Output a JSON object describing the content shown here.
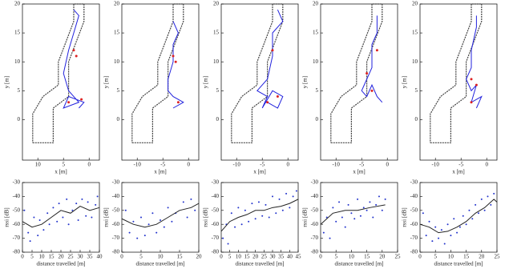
{
  "chart_data": [
    {
      "type": "line",
      "x_label": "x [m]",
      "y_label": "y [m]",
      "xlim": [
        13,
        -2
      ],
      "ylim": [
        -7,
        20
      ],
      "xticks": [
        10,
        5,
        0
      ],
      "yticks": [
        0,
        5,
        10,
        15,
        20
      ],
      "series": [
        {
          "color": "#444444",
          "mode": "line",
          "x": [
            11,
            7,
            7,
            4,
            4,
            1,
            1,
            3,
            3,
            6,
            6,
            9,
            11,
            11
          ],
          "values": [
            -4,
            -4,
            2,
            4,
            10,
            17,
            20,
            20,
            17,
            10,
            6,
            4,
            1,
            -4
          ]
        },
        {
          "color": "#2222dd",
          "mode": "line",
          "x": [
            3,
            2,
            3,
            4,
            5,
            4,
            3,
            2,
            5,
            4,
            1,
            2
          ],
          "values": [
            19,
            18,
            15,
            12,
            8,
            5,
            4,
            3,
            2,
            4,
            3,
            2
          ]
        },
        {
          "color": "#dd2222",
          "mode": "markers",
          "x": [
            2.5,
            3,
            1.5,
            4
          ],
          "values": [
            11,
            12,
            3.5,
            3
          ]
        }
      ]
    },
    {
      "type": "line",
      "x_label": "x [m]",
      "y_label": "y [m]",
      "xlim": [
        -13,
        2
      ],
      "ylim": [
        -7,
        20
      ],
      "xticks": [
        -10,
        -5,
        0
      ],
      "yticks": [
        0,
        5,
        10,
        15,
        20
      ],
      "series": [
        {
          "color": "#444444",
          "mode": "line",
          "x": [
            -11,
            -7,
            -7,
            -4,
            -4,
            -1,
            -1,
            -3,
            -3,
            -6,
            -6,
            -9,
            -11,
            -11
          ],
          "values": [
            -4,
            -4,
            2,
            4,
            10,
            17,
            20,
            20,
            17,
            10,
            6,
            4,
            1,
            -4
          ]
        },
        {
          "color": "#2222dd",
          "mode": "line",
          "x": [
            -3,
            -2,
            -3,
            -3,
            -4,
            -4,
            -3,
            -1,
            -3,
            -1
          ],
          "values": [
            17,
            15,
            13,
            10,
            7,
            5,
            4,
            3,
            2,
            3
          ]
        },
        {
          "color": "#dd2222",
          "mode": "markers",
          "x": [
            -3,
            -2.5,
            -2
          ],
          "values": [
            11,
            10,
            3
          ]
        }
      ]
    },
    {
      "type": "line",
      "x_label": "x [m]",
      "y_label": "y [m]",
      "xlim": [
        -13,
        2
      ],
      "ylim": [
        -7,
        20
      ],
      "xticks": [
        -10,
        -5,
        0
      ],
      "yticks": [
        0,
        5,
        10,
        15,
        20
      ],
      "series": [
        {
          "color": "#444444",
          "mode": "line",
          "x": [
            -11,
            -7,
            -7,
            -4,
            -4,
            -1,
            -1,
            -3,
            -3,
            -6,
            -6,
            -9,
            -11,
            -11
          ],
          "values": [
            -4,
            -4,
            2,
            4,
            10,
            17,
            20,
            20,
            17,
            10,
            6,
            4,
            1,
            -4
          ]
        },
        {
          "color": "#2222dd",
          "mode": "line",
          "x": [
            -2,
            -1,
            -3,
            -3,
            -4,
            -6,
            -4,
            -5,
            -3,
            -1,
            -2,
            -4
          ],
          "values": [
            19,
            17,
            15,
            11,
            7,
            5,
            4,
            2,
            5,
            4,
            2,
            3
          ]
        },
        {
          "color": "#dd2222",
          "mode": "markers",
          "x": [
            -3,
            -2,
            -4
          ],
          "values": [
            12,
            4,
            3
          ]
        }
      ]
    },
    {
      "type": "line",
      "x_label": "x [m]",
      "y_label": "y [m]",
      "xlim": [
        -13,
        2
      ],
      "ylim": [
        -7,
        20
      ],
      "xticks": [
        -10,
        -5,
        0
      ],
      "yticks": [
        0,
        5,
        10,
        15,
        20
      ],
      "series": [
        {
          "color": "#444444",
          "mode": "line",
          "x": [
            -11,
            -7,
            -7,
            -4,
            -4,
            -1,
            -1,
            -3,
            -3,
            -6,
            -6,
            -9,
            -11,
            -11
          ],
          "values": [
            -4,
            -4,
            2,
            4,
            10,
            17,
            20,
            20,
            17,
            10,
            6,
            4,
            1,
            -4
          ]
        },
        {
          "color": "#2222dd",
          "mode": "line",
          "x": [
            -2,
            -2,
            -3,
            -3,
            -4,
            -5,
            -4,
            -3,
            -2,
            -1
          ],
          "values": [
            18,
            15,
            13,
            9,
            7,
            5,
            4,
            6,
            4,
            3
          ]
        },
        {
          "color": "#dd2222",
          "mode": "markers",
          "x": [
            -2,
            -4,
            -3
          ],
          "values": [
            12,
            8,
            5
          ]
        }
      ]
    },
    {
      "type": "line",
      "x_label": "x [m]",
      "y_label": "y [m]",
      "xlim": [
        -13,
        2
      ],
      "ylim": [
        -7,
        20
      ],
      "xticks": [
        -10,
        -5,
        0
      ],
      "yticks": [
        0,
        5,
        10,
        15,
        20
      ],
      "series": [
        {
          "color": "#444444",
          "mode": "line",
          "x": [
            -11,
            -7,
            -7,
            -4,
            -4,
            -1,
            -1,
            -3,
            -3,
            -6,
            -6,
            -9,
            -11,
            -11
          ],
          "values": [
            -4,
            -4,
            2,
            4,
            10,
            17,
            20,
            20,
            17,
            10,
            6,
            4,
            1,
            -4
          ]
        },
        {
          "color": "#2222dd",
          "mode": "line",
          "x": [
            -2,
            -2,
            -3,
            -3,
            -4,
            -3,
            -2,
            -3,
            -1,
            -2
          ],
          "values": [
            18,
            16,
            12,
            9,
            7,
            5,
            6,
            3,
            4,
            2
          ]
        },
        {
          "color": "#dd2222",
          "mode": "markers",
          "x": [
            -3,
            -2,
            -3
          ],
          "values": [
            7,
            6,
            3
          ]
        }
      ]
    },
    {
      "type": "scatter",
      "x_label": "distance travelled [m]",
      "y_label": "rssi [dB]",
      "xlim": [
        0,
        40
      ],
      "ylim": [
        -80,
        -30
      ],
      "xticks": [
        0,
        5,
        10,
        15,
        20,
        25,
        30,
        35,
        40
      ],
      "yticks": [
        -30,
        -40,
        -50,
        -60,
        -70,
        -80
      ],
      "series": [
        {
          "color": "#2233cc",
          "mode": "markers",
          "x": [
            1,
            3,
            4,
            6,
            8,
            9,
            11,
            13,
            14,
            16,
            18,
            19,
            21,
            23,
            24,
            26,
            28,
            29,
            31,
            33,
            34,
            36,
            38,
            39
          ],
          "values": [
            -50,
            -66,
            -72,
            -55,
            -68,
            -57,
            -64,
            -52,
            -60,
            -48,
            -58,
            -45,
            -55,
            -42,
            -60,
            -50,
            -45,
            -57,
            -42,
            -54,
            -44,
            -55,
            -46,
            -40
          ]
        },
        {
          "color": "#222222",
          "mode": "line",
          "x": [
            0,
            5,
            10,
            15,
            20,
            25,
            30,
            35,
            40
          ],
          "values": [
            -58,
            -62,
            -60,
            -55,
            -50,
            -52,
            -47,
            -50,
            -48
          ]
        }
      ]
    },
    {
      "type": "scatter",
      "x_label": "distance travelled [m]",
      "y_label": "rssi [dB]",
      "xlim": [
        0,
        20
      ],
      "ylim": [
        -80,
        -30
      ],
      "xticks": [
        0,
        5,
        10,
        15,
        20
      ],
      "yticks": [
        -30,
        -40,
        -50,
        -60,
        -70,
        -80
      ],
      "series": [
        {
          "color": "#2233cc",
          "mode": "markers",
          "x": [
            1,
            2,
            3,
            4,
            5,
            6,
            7,
            8,
            9,
            10,
            11,
            12,
            13,
            14,
            16,
            17,
            18,
            19
          ],
          "values": [
            -50,
            -66,
            -58,
            -70,
            -55,
            -68,
            -60,
            -52,
            -66,
            -57,
            -62,
            -48,
            -58,
            -52,
            -44,
            -55,
            -42,
            -50
          ]
        },
        {
          "color": "#222222",
          "mode": "line",
          "x": [
            0,
            3,
            6,
            9,
            12,
            15,
            18,
            20
          ],
          "values": [
            -56,
            -60,
            -62,
            -60,
            -55,
            -50,
            -48,
            -45
          ]
        }
      ]
    },
    {
      "type": "scatter",
      "x_label": "distance travelled [m]",
      "y_label": "rssi [dB]",
      "xlim": [
        0,
        45
      ],
      "ylim": [
        -80,
        -30
      ],
      "xticks": [
        0,
        5,
        10,
        15,
        20,
        25,
        30,
        35,
        40,
        45
      ],
      "yticks": [
        -30,
        -40,
        -50,
        -60,
        -70,
        -80
      ],
      "series": [
        {
          "color": "#2233cc",
          "mode": "markers",
          "x": [
            1,
            3,
            4,
            6,
            8,
            10,
            12,
            14,
            16,
            18,
            20,
            22,
            24,
            26,
            28,
            30,
            32,
            34,
            36,
            38,
            40,
            42,
            44
          ],
          "values": [
            -70,
            -60,
            -74,
            -52,
            -62,
            -48,
            -60,
            -50,
            -58,
            -45,
            -56,
            -44,
            -54,
            -46,
            -55,
            -40,
            -52,
            -42,
            -50,
            -38,
            -48,
            -40,
            -36
          ]
        },
        {
          "color": "#222222",
          "mode": "line",
          "x": [
            0,
            5,
            10,
            15,
            20,
            25,
            30,
            35,
            40,
            45
          ],
          "values": [
            -65,
            -58,
            -55,
            -53,
            -50,
            -50,
            -48,
            -47,
            -45,
            -42
          ]
        }
      ]
    },
    {
      "type": "scatter",
      "x_label": "distance travelled [m]",
      "y_label": "rssi [dB]",
      "xlim": [
        0,
        25
      ],
      "ylim": [
        -80,
        -30
      ],
      "xticks": [
        0,
        5,
        10,
        15,
        20,
        25
      ],
      "yticks": [
        -30,
        -40,
        -50,
        -60,
        -70,
        -80
      ],
      "series": [
        {
          "color": "#2233cc",
          "mode": "markers",
          "x": [
            1,
            2,
            3,
            4,
            5,
            6,
            7,
            8,
            9,
            10,
            11,
            12,
            13,
            14,
            15,
            16,
            17,
            18,
            19,
            20,
            21
          ],
          "values": [
            -66,
            -55,
            -70,
            -48,
            -58,
            -44,
            -55,
            -62,
            -46,
            -52,
            -56,
            -42,
            -54,
            -48,
            -50,
            -44,
            -55,
            -46,
            -40,
            -50,
            -42
          ]
        },
        {
          "color": "#222222",
          "mode": "line",
          "x": [
            0,
            4,
            8,
            12,
            16,
            21
          ],
          "values": [
            -60,
            -52,
            -50,
            -50,
            -48,
            -46
          ]
        }
      ]
    },
    {
      "type": "scatter",
      "x_label": "distance travelled [m]",
      "y_label": "rssi [dB]",
      "xlim": [
        0,
        25
      ],
      "ylim": [
        -80,
        -30
      ],
      "xticks": [
        0,
        5,
        10,
        15,
        20,
        25
      ],
      "yticks": [
        -30,
        -40,
        -50,
        -60,
        -70,
        -80
      ],
      "series": [
        {
          "color": "#2233cc",
          "mode": "markers",
          "x": [
            1,
            2,
            3,
            4,
            5,
            6,
            7,
            8,
            9,
            10,
            11,
            12,
            13,
            14,
            15,
            16,
            17,
            18,
            19,
            20,
            21,
            22,
            23,
            24
          ],
          "values": [
            -52,
            -68,
            -58,
            -72,
            -62,
            -70,
            -64,
            -74,
            -60,
            -68,
            -56,
            -66,
            -62,
            -54,
            -60,
            -50,
            -56,
            -46,
            -52,
            -42,
            -50,
            -40,
            -46,
            -38
          ]
        },
        {
          "color": "#222222",
          "mode": "line",
          "x": [
            0,
            3,
            6,
            9,
            12,
            15,
            18,
            21,
            24,
            25
          ],
          "values": [
            -60,
            -62,
            -66,
            -65,
            -62,
            -58,
            -52,
            -48,
            -42,
            -44
          ]
        }
      ]
    }
  ]
}
